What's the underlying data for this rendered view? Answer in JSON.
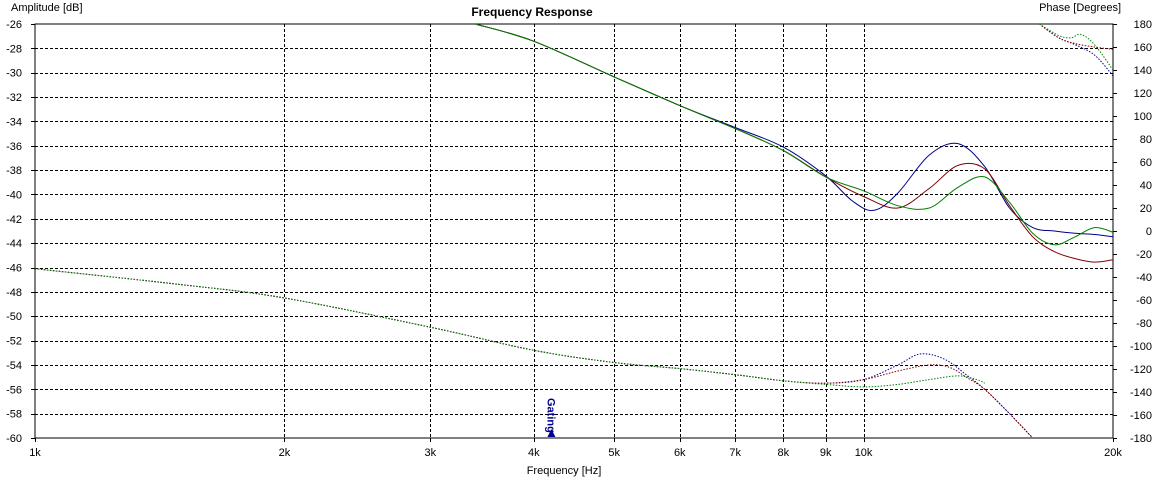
{
  "chart_data": {
    "type": "line",
    "title": "Frequency Response",
    "xlabel": "Frequency [Hz]",
    "ylabel_left": "Amplitude [dB]",
    "ylabel_right": "Phase [Degrees]",
    "x_scale": "log",
    "xlim": [
      1000,
      20000
    ],
    "ylim_left": [
      -60,
      -26
    ],
    "ylim_right": [
      -180,
      180
    ],
    "grid": true,
    "x_ticks": [
      {
        "value": 1000,
        "label": "1k"
      },
      {
        "value": 2000,
        "label": "2k"
      },
      {
        "value": 3000,
        "label": "3k"
      },
      {
        "value": 4000,
        "label": "4k"
      },
      {
        "value": 5000,
        "label": "5k"
      },
      {
        "value": 6000,
        "label": "6k"
      },
      {
        "value": 7000,
        "label": "7k"
      },
      {
        "value": 8000,
        "label": "8k"
      },
      {
        "value": 9000,
        "label": "9k"
      },
      {
        "value": 10000,
        "label": "10k"
      },
      {
        "value": 20000,
        "label": "20k"
      }
    ],
    "y_ticks_left": [
      "-26",
      "-28",
      "-30",
      "-32",
      "-34",
      "-36",
      "-38",
      "-40",
      "-42",
      "-44",
      "-46",
      "-48",
      "-50",
      "-52",
      "-54",
      "-56",
      "-58",
      "-60"
    ],
    "y_ticks_right": [
      "180",
      "160",
      "140",
      "120",
      "100",
      "80",
      "60",
      "40",
      "20",
      "0",
      "-20",
      "-40",
      "-60",
      "-80",
      "-100",
      "-120",
      "-140",
      "-160",
      "-180"
    ],
    "marker": {
      "label": "Gating",
      "x": 4200,
      "color": "#00008b"
    },
    "series": [
      {
        "color": "#00008b",
        "style": "dotted",
        "axis": "left",
        "x": [
          1000,
          1500,
          2000,
          3000,
          4000,
          5000,
          6000,
          7000,
          8000,
          9000,
          10000,
          11000,
          11700,
          12500,
          13300,
          14000,
          15000,
          16000
        ],
        "y": [
          -46.1,
          -47.4,
          -48.5,
          -50.9,
          -52.8,
          -53.8,
          -54.3,
          -54.8,
          -55.3,
          -55.5,
          -55.2,
          -54.0,
          -53.1,
          -53.5,
          -54.8,
          -56.0,
          -58.0,
          -60.0
        ]
      },
      {
        "color": "#800000",
        "style": "dotted",
        "axis": "left",
        "x": [
          1000,
          1500,
          2000,
          3000,
          4000,
          5000,
          6000,
          7000,
          8000,
          9000,
          10000,
          11000,
          12000,
          12700,
          13300,
          14000,
          15000,
          16000
        ],
        "y": [
          -46.1,
          -47.4,
          -48.5,
          -50.9,
          -52.8,
          -53.8,
          -54.3,
          -54.8,
          -55.3,
          -55.5,
          -55.2,
          -54.5,
          -54.0,
          -54.2,
          -55.0,
          -56.0,
          -58.0,
          -60.0
        ]
      },
      {
        "color": "#008000",
        "style": "dotted",
        "axis": "left",
        "x": [
          1000,
          1500,
          2000,
          3000,
          4000,
          5000,
          6000,
          7000,
          8000,
          9000,
          10000,
          11000,
          12000,
          13000,
          13700,
          14000
        ],
        "y": [
          -46.1,
          -47.4,
          -48.5,
          -50.9,
          -52.8,
          -53.8,
          -54.3,
          -54.8,
          -55.3,
          -55.6,
          -55.8,
          -55.6,
          -55.2,
          -54.9,
          -55.2,
          -55.5
        ]
      },
      {
        "color": "#00008b",
        "style": "solid",
        "axis": "right",
        "x": [
          3400,
          4000,
          5000,
          6000,
          7000,
          8000,
          9000,
          9700,
          10300,
          11000,
          12000,
          13000,
          14000,
          15000,
          16000,
          17000,
          18000,
          19000,
          20000
        ],
        "y": [
          180,
          165,
          134,
          109,
          90,
          73,
          48,
          26,
          18,
          33,
          66,
          76,
          56,
          20,
          3,
          0,
          -2,
          -3,
          -5
        ]
      },
      {
        "color": "#800000",
        "style": "solid",
        "axis": "right",
        "x": [
          3400,
          4000,
          5000,
          6000,
          7000,
          8000,
          9000,
          10000,
          11000,
          12000,
          13000,
          14000,
          15000,
          16000,
          17000,
          18000,
          19000,
          20000
        ],
        "y": [
          180,
          165,
          134,
          109,
          89,
          70,
          47,
          30,
          20,
          37,
          57,
          54,
          22,
          -5,
          -18,
          -24,
          -27,
          -25
        ]
      },
      {
        "color": "#008000",
        "style": "solid",
        "axis": "right",
        "x": [
          3400,
          4000,
          5000,
          6000,
          7000,
          8000,
          9000,
          10000,
          11000,
          12000,
          13000,
          14000,
          15000,
          16000,
          17000,
          18000,
          19000,
          20000
        ],
        "y": [
          180,
          165,
          134,
          109,
          89,
          70,
          47,
          35,
          22,
          20,
          38,
          47,
          25,
          -2,
          -12,
          -5,
          3,
          -1
        ]
      },
      {
        "color": "#00008b",
        "style": "dotted",
        "axis": "right",
        "x": [
          16300,
          17200,
          18000,
          19000,
          20000
        ],
        "y": [
          180,
          168,
          162,
          153,
          135
        ]
      },
      {
        "color": "#800000",
        "style": "dotted",
        "axis": "right",
        "x": [
          16300,
          17200,
          18000,
          19000,
          20000
        ],
        "y": [
          180,
          168,
          163,
          160,
          158
        ]
      },
      {
        "color": "#008000",
        "style": "dotted",
        "axis": "right",
        "x": [
          16300,
          17200,
          17800,
          18300,
          19000,
          20000
        ],
        "y": [
          180,
          170,
          168,
          171,
          162,
          140
        ]
      }
    ]
  }
}
